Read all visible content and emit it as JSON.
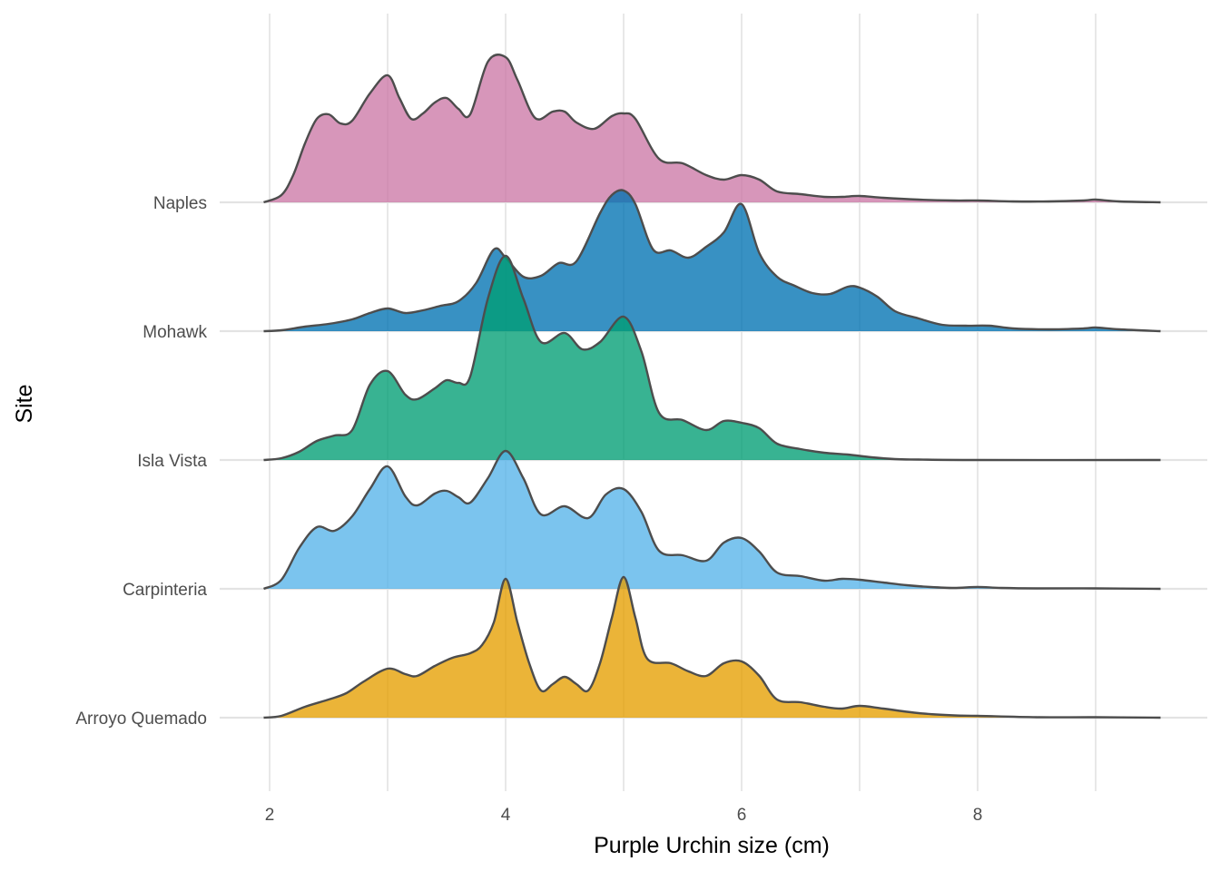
{
  "chart_data": {
    "type": "ridgeline",
    "xlabel": "Purple Urchin size (cm)",
    "ylabel": "Site",
    "xlim": [
      2,
      9.5
    ],
    "x_ticks": [
      {
        "value": 2,
        "label": "2"
      },
      {
        "value": 4,
        "label": "4"
      },
      {
        "value": 6,
        "label": "6"
      },
      {
        "value": 8,
        "label": "8"
      }
    ],
    "x_minor_gridlines": [
      3,
      5,
      7,
      9
    ],
    "grid": true,
    "legend": "none",
    "series": [
      {
        "name": "Arroyo Quemado",
        "color": "#E69F00",
        "points": [
          [
            1.95,
            0
          ],
          [
            2.1,
            0.02
          ],
          [
            2.3,
            0.12
          ],
          [
            2.5,
            0.2
          ],
          [
            2.65,
            0.27
          ],
          [
            2.8,
            0.4
          ],
          [
            3.0,
            0.54
          ],
          [
            3.15,
            0.48
          ],
          [
            3.25,
            0.46
          ],
          [
            3.4,
            0.57
          ],
          [
            3.55,
            0.66
          ],
          [
            3.7,
            0.71
          ],
          [
            3.8,
            0.8
          ],
          [
            3.9,
            1.05
          ],
          [
            4.0,
            1.53
          ],
          [
            4.1,
            1.05
          ],
          [
            4.2,
            0.6
          ],
          [
            4.3,
            0.3
          ],
          [
            4.4,
            0.37
          ],
          [
            4.5,
            0.45
          ],
          [
            4.6,
            0.37
          ],
          [
            4.7,
            0.3
          ],
          [
            4.8,
            0.6
          ],
          [
            4.9,
            1.1
          ],
          [
            5.0,
            1.55
          ],
          [
            5.1,
            1.1
          ],
          [
            5.2,
            0.65
          ],
          [
            5.4,
            0.6
          ],
          [
            5.55,
            0.51
          ],
          [
            5.7,
            0.46
          ],
          [
            5.85,
            0.6
          ],
          [
            6.0,
            0.62
          ],
          [
            6.15,
            0.46
          ],
          [
            6.3,
            0.2
          ],
          [
            6.5,
            0.17
          ],
          [
            6.7,
            0.12
          ],
          [
            6.85,
            0.1
          ],
          [
            7.0,
            0.13
          ],
          [
            7.2,
            0.1
          ],
          [
            7.5,
            0.05
          ],
          [
            7.8,
            0.025
          ],
          [
            8.0,
            0.02
          ],
          [
            8.5,
            0.005
          ],
          [
            9.0,
            0.005
          ],
          [
            9.55,
            0
          ]
        ]
      },
      {
        "name": "Carpinteria",
        "color": "#56B4E9",
        "points": [
          [
            1.95,
            0
          ],
          [
            2.1,
            0.1
          ],
          [
            2.25,
            0.45
          ],
          [
            2.4,
            0.68
          ],
          [
            2.55,
            0.64
          ],
          [
            2.7,
            0.8
          ],
          [
            2.85,
            1.1
          ],
          [
            3.0,
            1.35
          ],
          [
            3.15,
            1.02
          ],
          [
            3.25,
            0.92
          ],
          [
            3.4,
            1.05
          ],
          [
            3.5,
            1.08
          ],
          [
            3.6,
            1.01
          ],
          [
            3.7,
            0.95
          ],
          [
            3.85,
            1.22
          ],
          [
            4.0,
            1.52
          ],
          [
            4.15,
            1.22
          ],
          [
            4.3,
            0.82
          ],
          [
            4.5,
            0.91
          ],
          [
            4.7,
            0.78
          ],
          [
            4.85,
            1.04
          ],
          [
            5.0,
            1.1
          ],
          [
            5.15,
            0.85
          ],
          [
            5.3,
            0.42
          ],
          [
            5.5,
            0.37
          ],
          [
            5.7,
            0.31
          ],
          [
            5.85,
            0.51
          ],
          [
            6.0,
            0.56
          ],
          [
            6.15,
            0.41
          ],
          [
            6.3,
            0.18
          ],
          [
            6.5,
            0.14
          ],
          [
            6.7,
            0.09
          ],
          [
            6.85,
            0.11
          ],
          [
            7.0,
            0.1
          ],
          [
            7.2,
            0.07
          ],
          [
            7.4,
            0.04
          ],
          [
            7.6,
            0.02
          ],
          [
            7.8,
            0.01
          ],
          [
            8.0,
            0.02
          ],
          [
            8.2,
            0.01
          ],
          [
            8.5,
            0.005
          ],
          [
            9.0,
            0.005
          ],
          [
            9.55,
            0
          ]
        ]
      },
      {
        "name": "Isla Vista",
        "color": "#009E73",
        "points": [
          [
            1.95,
            0
          ],
          [
            2.1,
            0.02
          ],
          [
            2.25,
            0.09
          ],
          [
            2.4,
            0.21
          ],
          [
            2.55,
            0.27
          ],
          [
            2.7,
            0.33
          ],
          [
            2.85,
            0.83
          ],
          [
            3.0,
            0.98
          ],
          [
            3.15,
            0.72
          ],
          [
            3.25,
            0.67
          ],
          [
            3.4,
            0.79
          ],
          [
            3.5,
            0.88
          ],
          [
            3.6,
            0.85
          ],
          [
            3.7,
            0.92
          ],
          [
            3.85,
            1.78
          ],
          [
            4.0,
            2.25
          ],
          [
            4.15,
            1.78
          ],
          [
            4.3,
            1.3
          ],
          [
            4.5,
            1.4
          ],
          [
            4.65,
            1.22
          ],
          [
            4.8,
            1.3
          ],
          [
            5.0,
            1.58
          ],
          [
            5.15,
            1.2
          ],
          [
            5.3,
            0.52
          ],
          [
            5.5,
            0.44
          ],
          [
            5.7,
            0.33
          ],
          [
            5.85,
            0.43
          ],
          [
            6.0,
            0.41
          ],
          [
            6.15,
            0.35
          ],
          [
            6.3,
            0.18
          ],
          [
            6.5,
            0.12
          ],
          [
            6.7,
            0.08
          ],
          [
            6.9,
            0.06
          ],
          [
            7.1,
            0.03
          ],
          [
            7.3,
            0.01
          ],
          [
            7.5,
            0.005
          ],
          [
            8.0,
            0
          ],
          [
            9.55,
            0
          ]
        ]
      },
      {
        "name": "Mohawk",
        "color": "#0072B2",
        "points": [
          [
            1.95,
            0
          ],
          [
            2.1,
            0.01
          ],
          [
            2.3,
            0.05
          ],
          [
            2.5,
            0.08
          ],
          [
            2.7,
            0.13
          ],
          [
            2.85,
            0.2
          ],
          [
            3.0,
            0.25
          ],
          [
            3.15,
            0.2
          ],
          [
            3.3,
            0.23
          ],
          [
            3.45,
            0.28
          ],
          [
            3.6,
            0.33
          ],
          [
            3.75,
            0.53
          ],
          [
            3.9,
            0.9
          ],
          [
            4.0,
            0.81
          ],
          [
            4.15,
            0.6
          ],
          [
            4.3,
            0.61
          ],
          [
            4.45,
            0.75
          ],
          [
            4.6,
            0.77
          ],
          [
            4.8,
            1.3
          ],
          [
            4.9,
            1.5
          ],
          [
            5.0,
            1.55
          ],
          [
            5.1,
            1.4
          ],
          [
            5.25,
            0.9
          ],
          [
            5.4,
            0.89
          ],
          [
            5.55,
            0.81
          ],
          [
            5.7,
            0.93
          ],
          [
            5.85,
            1.09
          ],
          [
            6.0,
            1.4
          ],
          [
            6.15,
            0.86
          ],
          [
            6.3,
            0.6
          ],
          [
            6.45,
            0.5
          ],
          [
            6.6,
            0.42
          ],
          [
            6.75,
            0.41
          ],
          [
            6.9,
            0.49
          ],
          [
            7.0,
            0.48
          ],
          [
            7.15,
            0.38
          ],
          [
            7.3,
            0.22
          ],
          [
            7.5,
            0.14
          ],
          [
            7.7,
            0.07
          ],
          [
            7.9,
            0.06
          ],
          [
            8.1,
            0.06
          ],
          [
            8.3,
            0.03
          ],
          [
            8.6,
            0.02
          ],
          [
            8.9,
            0.03
          ],
          [
            9.0,
            0.04
          ],
          [
            9.2,
            0.02
          ],
          [
            9.55,
            0
          ]
        ]
      },
      {
        "name": "Naples",
        "color": "#CC79A7",
        "points": [
          [
            1.95,
            0
          ],
          [
            2.1,
            0.08
          ],
          [
            2.2,
            0.3
          ],
          [
            2.3,
            0.65
          ],
          [
            2.4,
            0.92
          ],
          [
            2.5,
            0.97
          ],
          [
            2.6,
            0.87
          ],
          [
            2.7,
            0.9
          ],
          [
            2.85,
            1.2
          ],
          [
            3.0,
            1.4
          ],
          [
            3.1,
            1.15
          ],
          [
            3.2,
            0.92
          ],
          [
            3.3,
            0.98
          ],
          [
            3.4,
            1.1
          ],
          [
            3.5,
            1.15
          ],
          [
            3.6,
            1.03
          ],
          [
            3.7,
            0.97
          ],
          [
            3.85,
            1.55
          ],
          [
            4.0,
            1.6
          ],
          [
            4.1,
            1.35
          ],
          [
            4.25,
            0.93
          ],
          [
            4.4,
            1.0
          ],
          [
            4.5,
            1.0
          ],
          [
            4.6,
            0.88
          ],
          [
            4.75,
            0.81
          ],
          [
            4.9,
            0.95
          ],
          [
            5.0,
            0.98
          ],
          [
            5.1,
            0.92
          ],
          [
            5.3,
            0.48
          ],
          [
            5.5,
            0.43
          ],
          [
            5.7,
            0.3
          ],
          [
            5.85,
            0.25
          ],
          [
            6.0,
            0.3
          ],
          [
            6.15,
            0.25
          ],
          [
            6.3,
            0.12
          ],
          [
            6.5,
            0.09
          ],
          [
            6.7,
            0.06
          ],
          [
            6.85,
            0.06
          ],
          [
            7.0,
            0.07
          ],
          [
            7.2,
            0.05
          ],
          [
            7.5,
            0.03
          ],
          [
            7.8,
            0.02
          ],
          [
            8.0,
            0.02
          ],
          [
            8.3,
            0.01
          ],
          [
            8.6,
            0.01
          ],
          [
            8.9,
            0.02
          ],
          [
            9.0,
            0.03
          ],
          [
            9.2,
            0.01
          ],
          [
            9.55,
            0
          ]
        ]
      }
    ]
  }
}
